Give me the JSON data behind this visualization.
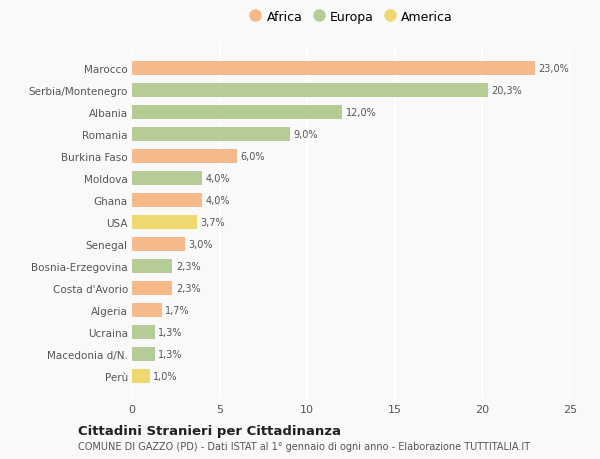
{
  "categories": [
    "Marocco",
    "Serbia/Montenegro",
    "Albania",
    "Romania",
    "Burkina Faso",
    "Moldova",
    "Ghana",
    "USA",
    "Senegal",
    "Bosnia-Erzegovina",
    "Costa d'Avorio",
    "Algeria",
    "Ucraina",
    "Macedonia d/N.",
    "Perù"
  ],
  "values": [
    23.0,
    20.3,
    12.0,
    9.0,
    6.0,
    4.0,
    4.0,
    3.7,
    3.0,
    2.3,
    2.3,
    1.7,
    1.3,
    1.3,
    1.0
  ],
  "labels": [
    "23,0%",
    "20,3%",
    "12,0%",
    "9,0%",
    "6,0%",
    "4,0%",
    "4,0%",
    "3,7%",
    "3,0%",
    "2,3%",
    "2,3%",
    "1,7%",
    "1,3%",
    "1,3%",
    "1,0%"
  ],
  "continent": [
    "Africa",
    "Europa",
    "Europa",
    "Europa",
    "Africa",
    "Europa",
    "Africa",
    "America",
    "Africa",
    "Europa",
    "Africa",
    "Africa",
    "Europa",
    "Europa",
    "America"
  ],
  "colors": {
    "Africa": "#F5B98A",
    "Europa": "#B5CC96",
    "America": "#F0D870"
  },
  "legend": [
    "Africa",
    "Europa",
    "America"
  ],
  "legend_colors": [
    "#F5B98A",
    "#B5CC96",
    "#F0D870"
  ],
  "title": "Cittadini Stranieri per Cittadinanza",
  "subtitle": "COMUNE DI GAZZO (PD) - Dati ISTAT al 1° gennaio di ogni anno - Elaborazione TUTTITALIA.IT",
  "xlim": [
    0,
    25
  ],
  "background_color": "#f9f9f9",
  "grid_color": "#ffffff"
}
